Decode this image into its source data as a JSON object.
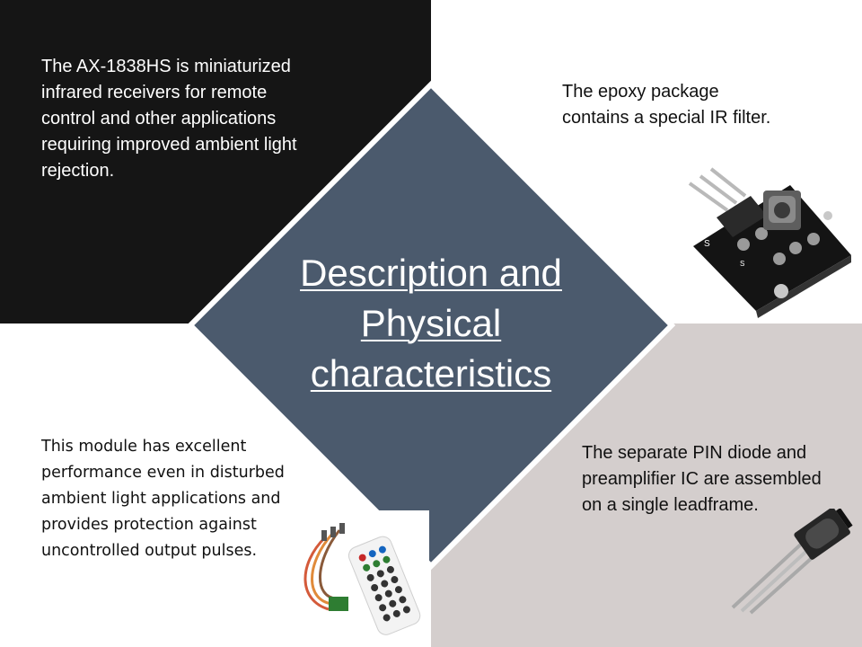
{
  "slide": {
    "title_line1": "Description and",
    "title_line2": "Physical",
    "title_line3": "characteristics",
    "top_left_text": "The AX-1838HS is miniaturized infrared receivers for remote control and other applications requiring improved ambient light rejection.",
    "top_right_text": "The epoxy package contains a special IR filter.",
    "bottom_left_text": "This module has excellent performance even in disturbed ambient light applications and provides protection against uncontrolled output pulses.",
    "bottom_right_text": "The separate PIN diode and preamplifier IC are assembled on a single leadframe."
  },
  "colors": {
    "diamond": "#4b5a6d",
    "top_left_bg": "#151515",
    "bottom_right_bg": "#d4cecd",
    "title_text": "#ffffff"
  },
  "images": {
    "sensor_module": "ir-receiver-module-photo",
    "remote_kit": "ir-remote-kit-photo",
    "diode": "ir-diode-component-photo"
  }
}
